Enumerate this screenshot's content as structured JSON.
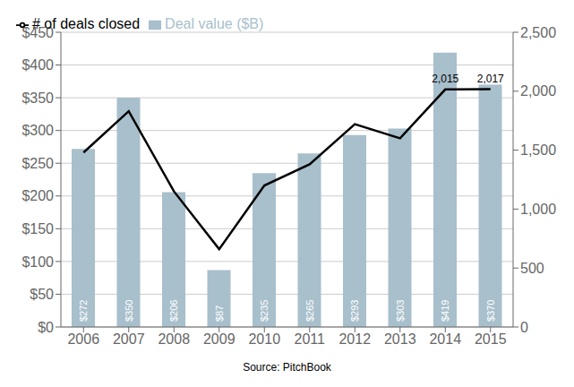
{
  "chart_data": {
    "type": "bar",
    "categories": [
      "2006",
      "2007",
      "2008",
      "2009",
      "2010",
      "2011",
      "2012",
      "2013",
      "2014",
      "2015"
    ],
    "series": [
      {
        "name": "Deal value ($B)",
        "type": "bar",
        "color": "#a8bfcc",
        "values": [
          272,
          350,
          206,
          87,
          235,
          265,
          293,
          303,
          419,
          370
        ],
        "value_labels": [
          "$272",
          "$350",
          "$206",
          "$87",
          "$235",
          "$265",
          "$293",
          "$303",
          "$419",
          "$370"
        ],
        "data_labels": true
      },
      {
        "name": "# of deals closed",
        "type": "line",
        "color": "#000000",
        "axis": "y2",
        "values": [
          1480,
          1830,
          1150,
          660,
          1200,
          1380,
          1720,
          1600,
          2015,
          2017
        ]
      }
    ],
    "annotations": [
      {
        "text": "2,015",
        "x": "2014",
        "y": 2015,
        "axis": "y2"
      },
      {
        "text": "2,017",
        "x": "2015",
        "y": 2017,
        "axis": "y2"
      }
    ],
    "ylim": [
      0,
      450
    ],
    "yticks": [
      {
        "value": 0,
        "label": "$0"
      },
      {
        "value": 50,
        "label": "$50"
      },
      {
        "value": 100,
        "label": "$100"
      },
      {
        "value": 150,
        "label": "$150"
      },
      {
        "value": 200,
        "label": "$200"
      },
      {
        "value": 250,
        "label": "$250"
      },
      {
        "value": 300,
        "label": "$300"
      },
      {
        "value": 350,
        "label": "$350"
      },
      {
        "value": 400,
        "label": "$400"
      },
      {
        "value": 450,
        "label": "$450"
      }
    ],
    "y2lim": [
      0,
      2500
    ],
    "y2ticks": [
      0,
      500,
      {
        "value": 1000,
        "label": "1,000"
      },
      {
        "value": 1500,
        "label": "1,500"
      },
      {
        "value": 2000,
        "label": "2,000"
      },
      {
        "value": 2500,
        "label": "2,500"
      }
    ],
    "grid": true,
    "legend": "upper left",
    "source": "Source: PitchBook"
  }
}
